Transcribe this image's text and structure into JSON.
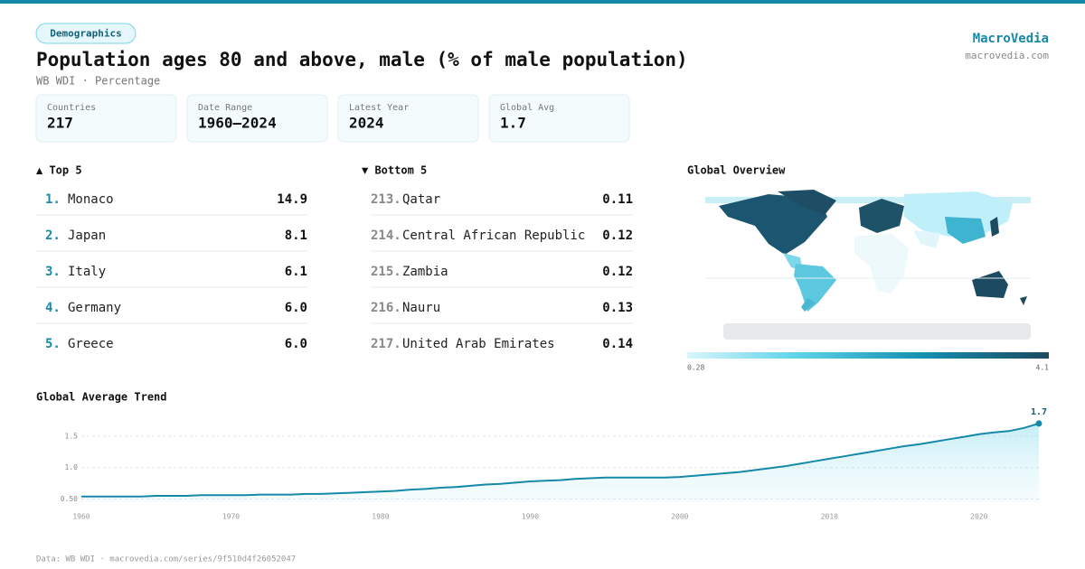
{
  "header": {
    "badge": "Demographics",
    "title": "Population ages 80 and above, male (% of male population)",
    "subtitle": "WB WDI · Percentage",
    "brand": "MacroVedia",
    "site": "macrovedia.com"
  },
  "stats": [
    {
      "label": "Countries",
      "value": "217"
    },
    {
      "label": "Date Range",
      "value": "1960–2024"
    },
    {
      "label": "Latest Year",
      "value": "2024"
    },
    {
      "label": "Global Avg",
      "value": "1.7"
    }
  ],
  "top5": {
    "title": "▲ Top 5",
    "rows": [
      {
        "rank": "1.",
        "name": "Monaco",
        "value": "14.9"
      },
      {
        "rank": "2.",
        "name": "Japan",
        "value": "8.1"
      },
      {
        "rank": "3.",
        "name": "Italy",
        "value": "6.1"
      },
      {
        "rank": "4.",
        "name": "Germany",
        "value": "6.0"
      },
      {
        "rank": "5.",
        "name": "Greece",
        "value": "6.0"
      }
    ]
  },
  "bottom5": {
    "title": "▼ Bottom 5",
    "rows": [
      {
        "rank": "213.",
        "name": "Qatar",
        "value": "0.11"
      },
      {
        "rank": "214.",
        "name": "Central African Republic",
        "value": "0.12"
      },
      {
        "rank": "215.",
        "name": "Zambia",
        "value": "0.12"
      },
      {
        "rank": "216.",
        "name": "Nauru",
        "value": "0.13"
      },
      {
        "rank": "217.",
        "name": "United Arab Emirates",
        "value": "0.14"
      }
    ]
  },
  "map": {
    "title": "Global Overview",
    "scale_min": "0.28",
    "scale_max": "4.1"
  },
  "chart_data": {
    "type": "line",
    "title": "Global Average Trend",
    "color": "#1689a8",
    "x": [
      1960,
      1961,
      1962,
      1963,
      1964,
      1965,
      1966,
      1967,
      1968,
      1969,
      1970,
      1971,
      1972,
      1973,
      1974,
      1975,
      1976,
      1977,
      1978,
      1979,
      1980,
      1981,
      1982,
      1983,
      1984,
      1985,
      1986,
      1987,
      1988,
      1989,
      1990,
      1991,
      1992,
      1993,
      1994,
      1995,
      1996,
      1997,
      1998,
      1999,
      2000,
      2001,
      2002,
      2003,
      2004,
      2005,
      2006,
      2007,
      2008,
      2009,
      2010,
      2011,
      2012,
      2013,
      2014,
      2015,
      2016,
      2017,
      2018,
      2019,
      2020,
      2021,
      2022,
      2023,
      2024
    ],
    "values": [
      0.54,
      0.54,
      0.54,
      0.54,
      0.54,
      0.55,
      0.55,
      0.55,
      0.56,
      0.56,
      0.56,
      0.56,
      0.57,
      0.57,
      0.57,
      0.58,
      0.58,
      0.59,
      0.6,
      0.61,
      0.62,
      0.63,
      0.65,
      0.66,
      0.68,
      0.69,
      0.71,
      0.73,
      0.74,
      0.76,
      0.78,
      0.79,
      0.8,
      0.82,
      0.83,
      0.84,
      0.84,
      0.84,
      0.84,
      0.84,
      0.85,
      0.87,
      0.89,
      0.91,
      0.93,
      0.96,
      0.99,
      1.02,
      1.06,
      1.1,
      1.14,
      1.18,
      1.22,
      1.26,
      1.3,
      1.34,
      1.37,
      1.41,
      1.45,
      1.49,
      1.53,
      1.56,
      1.58,
      1.63,
      1.7
    ],
    "xlim": [
      1960,
      2024
    ],
    "xticks": [
      1960,
      1970,
      1980,
      1990,
      2000,
      2010,
      2020
    ],
    "ylim": [
      0.45,
      1.9
    ],
    "yticks": [
      {
        "value": 0.5,
        "label": "0.50"
      },
      {
        "value": 1,
        "label": "1.0"
      },
      1.5
    ],
    "grid": true
  },
  "footer": "Data: WB WDI · macrovedia.com/series/9f510d4f26052047"
}
